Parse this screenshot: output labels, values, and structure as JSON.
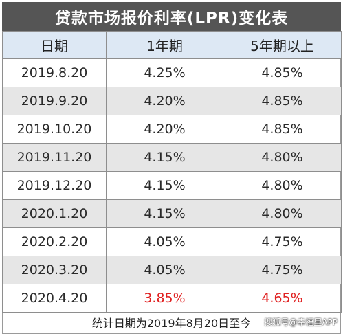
{
  "title": "贷款市场报价利率(LPR)变化表",
  "headers": [
    "日期",
    "1年期",
    "5年期以上"
  ],
  "rows": [
    {
      "date": "2019.8.20",
      "y1": "4.25%",
      "y5": "4.85%"
    },
    {
      "date": "2019.9.20",
      "y1": "4.20%",
      "y5": "4.85%"
    },
    {
      "date": "2019.10.20",
      "y1": "4.20%",
      "y5": "4.85%"
    },
    {
      "date": "2019.11.20",
      "y1": "4.15%",
      "y5": "4.80%"
    },
    {
      "date": "2019.12.20",
      "y1": "4.15%",
      "y5": "4.80%"
    },
    {
      "date": "2020.1.20",
      "y1": "4.15%",
      "y5": "4.80%"
    },
    {
      "date": "2020.2.20",
      "y1": "4.05%",
      "y5": "4.75%"
    },
    {
      "date": "2020.3.20",
      "y1": "4.05%",
      "y5": "4.75%"
    },
    {
      "date": "2020.4.20",
      "y1": "3.85%",
      "y5": "4.65%"
    }
  ],
  "footer": "统计日期为2019年8月20日至今",
  "watermark": "搜狐号@幸福里APP",
  "colors": {
    "title_bg": "#555555",
    "header_bg": "#dde8f4",
    "alt_row_bg": "#e6e6e6",
    "highlight": "#e02020"
  }
}
